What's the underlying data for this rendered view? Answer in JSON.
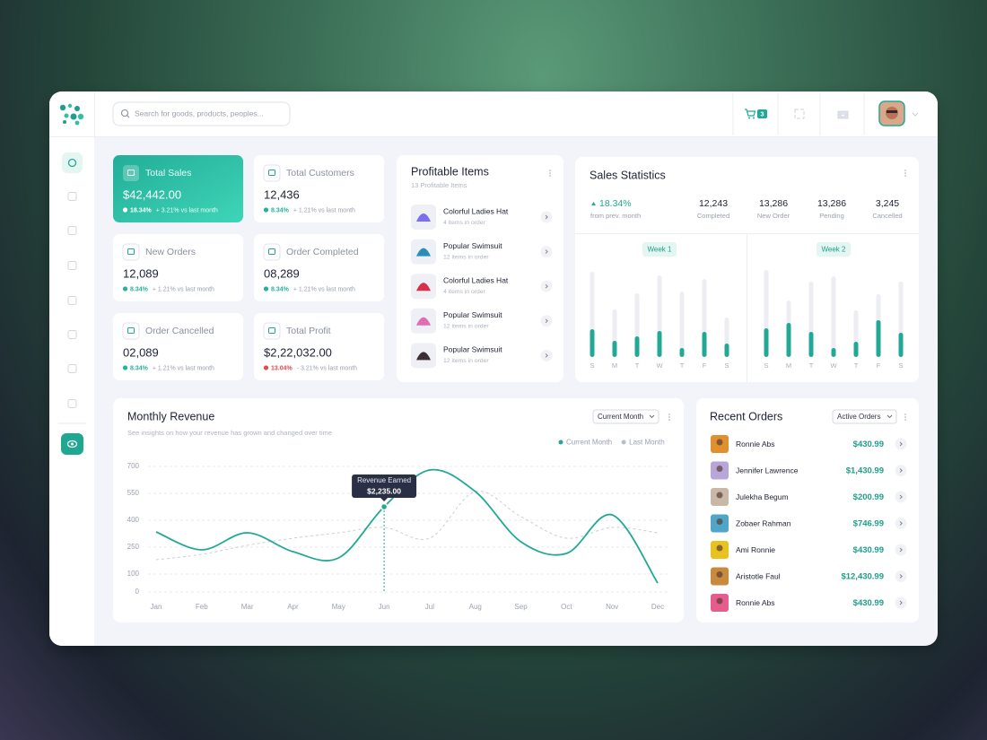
{
  "header": {
    "search_placeholder": "Search for goods, products, peoples...",
    "cart_count": "3"
  },
  "stat_cards": [
    {
      "label": "Total Sales",
      "value": "$42,442.00",
      "change": "18.34%",
      "comparison": "+ 3.21% vs last month",
      "change_color": "#22b39b"
    },
    {
      "label": "Total Customers",
      "value": "12,436",
      "change": "8.34%",
      "comparison": "+ 1.21% vs last month",
      "change_color": "#22b39b"
    },
    {
      "label": "New Orders",
      "value": "12,089",
      "change": "8.34%",
      "comparison": "+ 1.21% vs last month",
      "change_color": "#22b39b"
    },
    {
      "label": "Order Completed",
      "value": "08,289",
      "change": "8.34%",
      "comparison": "+ 1.21% vs last month",
      "change_color": "#22b39b"
    },
    {
      "label": "Order Cancelled",
      "value": "02,089",
      "change": "8.34%",
      "comparison": "+ 1.21% vs last month",
      "change_color": "#22b39b"
    },
    {
      "label": "Total Profit",
      "value": "$2,22,032.00",
      "change": "13.04%",
      "comparison": "- 3.21% vs last month",
      "change_color": "#e5484d"
    }
  ],
  "profitable_items": {
    "title": "Profitable Items",
    "subtitle": "13 Profitable Items",
    "items": [
      {
        "name": "Colorful Ladies Hat",
        "detail": "4 items in order",
        "color": "#7b6ff0"
      },
      {
        "name": "Popular Swimsuit",
        "detail": "12 items in order",
        "color": "#2a8fb8"
      },
      {
        "name": "Colorful Ladies Hat",
        "detail": "4 items in order",
        "color": "#d6334a"
      },
      {
        "name": "Popular Swimsuit",
        "detail": "12 items in order",
        "color": "#e26bb5"
      },
      {
        "name": "Popular Swimsuit",
        "detail": "12 items in order",
        "color": "#3a3034"
      }
    ]
  },
  "sales_statistics": {
    "title": "Sales Statistics",
    "change": "18.34%",
    "change_caption": "from prev. month",
    "stats": [
      {
        "value": "12,243",
        "label": "Completed"
      },
      {
        "value": "13,286",
        "label": "New Order"
      },
      {
        "value": "13,286",
        "label": "Pending"
      },
      {
        "value": "3,245",
        "label": "Cancelled"
      }
    ],
    "charts": [
      {
        "type": "bar",
        "title": "Week 1",
        "categories": [
          "S",
          "M",
          "T",
          "W",
          "T",
          "F",
          "S"
        ],
        "ylim": [
          0,
          100
        ],
        "series": [
          {
            "color": "#eceef3",
            "values": [
              95,
              53,
              71,
              91,
              73,
              87,
              44
            ]
          },
          {
            "color": "#22a996",
            "values": [
              31,
              18,
              23,
              29,
              10,
              28,
              15
            ]
          }
        ]
      },
      {
        "type": "bar",
        "title": "Week 2",
        "categories": [
          "S",
          "M",
          "T",
          "W",
          "T",
          "F",
          "S"
        ],
        "ylim": [
          0,
          100
        ],
        "series": [
          {
            "color": "#eceef3",
            "values": [
              97,
              63,
              84,
              90,
              52,
              70,
              84
            ]
          },
          {
            "color": "#22a996",
            "values": [
              32,
              38,
              28,
              10,
              17,
              41,
              27
            ]
          }
        ]
      }
    ]
  },
  "monthly_revenue": {
    "title": "Monthly Revenue",
    "subtitle": "See insights on how your revenue has grown and changed over time",
    "filter": "Current Month",
    "chart": {
      "type": "line",
      "categories": [
        "Jan",
        "Feb",
        "Mar",
        "Apr",
        "May",
        "Jun",
        "Jul",
        "Aug",
        "Sep",
        "Oct",
        "Nov",
        "Dec"
      ],
      "series": [
        {
          "name": "Current Month",
          "color": "#22a996",
          "values": [
            335,
            235,
            330,
            225,
            190,
            475,
            680,
            560,
            280,
            215,
            430,
            50
          ]
        },
        {
          "name": "Last Month",
          "color": "#c9cdd6",
          "dashed": true,
          "values": [
            180,
            210,
            260,
            300,
            330,
            360,
            300,
            560,
            420,
            300,
            360,
            330
          ]
        }
      ],
      "ylim": [
        0,
        700
      ],
      "yticks": [
        0,
        100,
        250,
        400,
        550,
        700
      ],
      "grid": true,
      "annotation": {
        "title": "Revenue Earned",
        "value": "$2,235.00"
      }
    }
  },
  "recent_orders": {
    "title": "Recent Orders",
    "filter": "Active Orders",
    "rows": [
      {
        "name": "Ronnie Abs",
        "amount": "$430.99",
        "color": "#e0902f"
      },
      {
        "name": "Jennifer Lawrence",
        "amount": "$1,430.99",
        "color": "#b9a6d8"
      },
      {
        "name": "Julekha Begum",
        "amount": "$200.99",
        "color": "#c9b7a8"
      },
      {
        "name": "Zobaer Rahman",
        "amount": "$746.99",
        "color": "#4fa6c9"
      },
      {
        "name": "Ami Ronnie",
        "amount": "$430.99",
        "color": "#e8c21e"
      },
      {
        "name": "Aristotle Faul",
        "amount": "$12,430.99",
        "color": "#c98a3e"
      },
      {
        "name": "Ronnie Abs",
        "amount": "$430.99",
        "color": "#e45d8d"
      }
    ]
  }
}
